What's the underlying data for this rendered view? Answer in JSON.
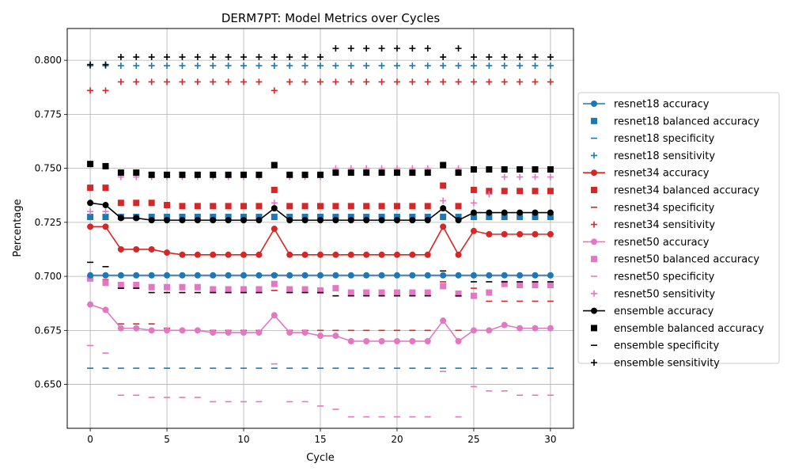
{
  "chart_data": {
    "type": "line",
    "title": "DERM7PT: Model Metrics over Cycles",
    "xlabel": "Cycle",
    "ylabel": "Percentage",
    "xlim": [
      -1.5,
      31.5
    ],
    "ylim": [
      0.6297,
      0.8147
    ],
    "xticks": [
      0,
      5,
      10,
      15,
      20,
      25,
      30
    ],
    "yticks": [
      0.65,
      0.675,
      0.7,
      0.725,
      0.75,
      0.775,
      0.8
    ],
    "ytick_labels": [
      "0.650",
      "0.675",
      "0.700",
      "0.725",
      "0.750",
      "0.775",
      "0.800"
    ],
    "grid": true,
    "legend_position": "center-right outside",
    "colors": {
      "resnet18": "#1f77b4",
      "resnet34": "#d62728",
      "resnet50": "#e377c2",
      "ensemble": "#000000"
    },
    "x": [
      0,
      1,
      2,
      3,
      4,
      5,
      6,
      7,
      8,
      9,
      10,
      11,
      12,
      13,
      14,
      15,
      16,
      17,
      18,
      19,
      20,
      21,
      22,
      23,
      24,
      25,
      26,
      27,
      28,
      29,
      30
    ],
    "series": [
      {
        "name": "resnet18 accuracy",
        "model": "resnet18",
        "marker": "line-circle",
        "values": [
          0.7005,
          0.7005,
          0.7005,
          0.7005,
          0.7005,
          0.7005,
          0.7005,
          0.7005,
          0.7005,
          0.7005,
          0.7005,
          0.7005,
          0.7005,
          0.7005,
          0.7005,
          0.7005,
          0.7005,
          0.7005,
          0.7005,
          0.7005,
          0.7005,
          0.7005,
          0.7005,
          0.7005,
          0.7005,
          0.7005,
          0.7005,
          0.7005,
          0.7005,
          0.7005,
          0.7005
        ]
      },
      {
        "name": "resnet18 balanced accuracy",
        "model": "resnet18",
        "marker": "square",
        "values": [
          0.7275,
          0.7275,
          0.7275,
          0.7275,
          0.7275,
          0.7275,
          0.7275,
          0.7275,
          0.7275,
          0.7275,
          0.7275,
          0.7275,
          0.7275,
          0.7275,
          0.7275,
          0.7275,
          0.7275,
          0.7275,
          0.7275,
          0.7275,
          0.7275,
          0.7275,
          0.7275,
          0.7275,
          0.7275,
          0.7275,
          0.7275,
          0.7275,
          0.7275,
          0.7275,
          0.7275
        ]
      },
      {
        "name": "resnet18 specificity",
        "model": "resnet18",
        "marker": "dash",
        "values": [
          0.6575,
          0.6575,
          0.6575,
          0.6575,
          0.6575,
          0.6575,
          0.6575,
          0.6575,
          0.6575,
          0.6575,
          0.6575,
          0.6575,
          0.6575,
          0.6575,
          0.6575,
          0.6575,
          0.6575,
          0.6575,
          0.6575,
          0.6575,
          0.6575,
          0.6575,
          0.6575,
          0.6575,
          0.6575,
          0.6575,
          0.6575,
          0.6575,
          0.6575,
          0.6575,
          0.6575
        ]
      },
      {
        "name": "resnet18 sensitivity",
        "model": "resnet18",
        "marker": "plus",
        "values": [
          0.7975,
          0.7975,
          0.7975,
          0.7975,
          0.7975,
          0.7975,
          0.7975,
          0.7975,
          0.7975,
          0.7975,
          0.7975,
          0.7975,
          0.7975,
          0.7975,
          0.7975,
          0.7975,
          0.7975,
          0.7975,
          0.7975,
          0.7975,
          0.7975,
          0.7975,
          0.7975,
          0.7975,
          0.7975,
          0.7975,
          0.7975,
          0.7975,
          0.7975,
          0.7975,
          0.7975
        ]
      },
      {
        "name": "resnet34 accuracy",
        "model": "resnet34",
        "marker": "line-circle",
        "values": [
          0.723,
          0.723,
          0.7125,
          0.7125,
          0.7125,
          0.711,
          0.71,
          0.71,
          0.71,
          0.71,
          0.71,
          0.71,
          0.722,
          0.71,
          0.71,
          0.71,
          0.71,
          0.71,
          0.71,
          0.71,
          0.71,
          0.71,
          0.71,
          0.723,
          0.71,
          0.721,
          0.7195,
          0.7195,
          0.7195,
          0.7195,
          0.7195
        ]
      },
      {
        "name": "resnet34 balanced accuracy",
        "model": "resnet34",
        "marker": "square",
        "values": [
          0.741,
          0.741,
          0.734,
          0.734,
          0.734,
          0.733,
          0.7325,
          0.7325,
          0.7325,
          0.7325,
          0.7325,
          0.7325,
          0.74,
          0.7325,
          0.7325,
          0.7325,
          0.7325,
          0.7325,
          0.7325,
          0.7325,
          0.7325,
          0.7325,
          0.7325,
          0.742,
          0.7325,
          0.74,
          0.7395,
          0.7395,
          0.7395,
          0.7395,
          0.7395
        ]
      },
      {
        "name": "resnet34 specificity",
        "model": "resnet34",
        "marker": "dash",
        "values": [
          0.6985,
          0.6985,
          0.678,
          0.678,
          0.678,
          0.676,
          0.675,
          0.675,
          0.675,
          0.675,
          0.675,
          0.675,
          0.6935,
          0.675,
          0.675,
          0.675,
          0.675,
          0.675,
          0.675,
          0.675,
          0.675,
          0.675,
          0.675,
          0.6975,
          0.675,
          0.6945,
          0.6885,
          0.6885,
          0.6885,
          0.6885,
          0.6885
        ]
      },
      {
        "name": "resnet34 sensitivity",
        "model": "resnet34",
        "marker": "plus",
        "values": [
          0.786,
          0.786,
          0.79,
          0.79,
          0.79,
          0.79,
          0.79,
          0.79,
          0.79,
          0.79,
          0.79,
          0.79,
          0.786,
          0.79,
          0.79,
          0.79,
          0.79,
          0.79,
          0.79,
          0.79,
          0.79,
          0.79,
          0.79,
          0.79,
          0.79,
          0.79,
          0.79,
          0.79,
          0.79,
          0.79,
          0.79
        ]
      },
      {
        "name": "resnet50 accuracy",
        "model": "resnet50",
        "marker": "line-circle",
        "values": [
          0.687,
          0.6845,
          0.676,
          0.676,
          0.675,
          0.675,
          0.675,
          0.675,
          0.674,
          0.674,
          0.674,
          0.674,
          0.682,
          0.674,
          0.674,
          0.6725,
          0.6725,
          0.67,
          0.67,
          0.67,
          0.67,
          0.67,
          0.67,
          0.6795,
          0.67,
          0.675,
          0.675,
          0.6775,
          0.676,
          0.676,
          0.676
        ]
      },
      {
        "name": "resnet50 balanced accuracy",
        "model": "resnet50",
        "marker": "square",
        "values": [
          0.699,
          0.697,
          0.696,
          0.696,
          0.695,
          0.695,
          0.695,
          0.695,
          0.694,
          0.694,
          0.694,
          0.694,
          0.6965,
          0.694,
          0.694,
          0.6935,
          0.6945,
          0.6925,
          0.6925,
          0.6925,
          0.6925,
          0.6925,
          0.6925,
          0.6955,
          0.692,
          0.691,
          0.6925,
          0.6965,
          0.696,
          0.696,
          0.696
        ]
      },
      {
        "name": "resnet50 specificity",
        "model": "resnet50",
        "marker": "dash",
        "values": [
          0.668,
          0.6645,
          0.645,
          0.645,
          0.644,
          0.644,
          0.644,
          0.644,
          0.642,
          0.642,
          0.642,
          0.642,
          0.6595,
          0.642,
          0.642,
          0.64,
          0.6385,
          0.635,
          0.635,
          0.635,
          0.635,
          0.635,
          0.635,
          0.656,
          0.635,
          0.649,
          0.647,
          0.647,
          0.645,
          0.645,
          0.645
        ]
      },
      {
        "name": "resnet50 sensitivity",
        "model": "resnet50",
        "marker": "plus",
        "values": [
          0.73,
          0.73,
          0.746,
          0.746,
          0.746,
          0.746,
          0.746,
          0.746,
          0.746,
          0.746,
          0.746,
          0.746,
          0.734,
          0.746,
          0.746,
          0.746,
          0.75,
          0.75,
          0.75,
          0.75,
          0.75,
          0.75,
          0.75,
          0.735,
          0.75,
          0.734,
          0.738,
          0.746,
          0.746,
          0.746,
          0.746
        ]
      },
      {
        "name": "ensemble accuracy",
        "model": "ensemble",
        "marker": "line-circle",
        "values": [
          0.734,
          0.733,
          0.727,
          0.727,
          0.726,
          0.726,
          0.726,
          0.726,
          0.726,
          0.726,
          0.726,
          0.726,
          0.7315,
          0.726,
          0.726,
          0.726,
          0.726,
          0.726,
          0.726,
          0.726,
          0.726,
          0.726,
          0.726,
          0.7315,
          0.726,
          0.7295,
          0.7295,
          0.7295,
          0.7295,
          0.7295,
          0.7295
        ]
      },
      {
        "name": "ensemble balanced accuracy",
        "model": "ensemble",
        "marker": "square",
        "values": [
          0.752,
          0.751,
          0.748,
          0.748,
          0.747,
          0.747,
          0.747,
          0.747,
          0.747,
          0.747,
          0.747,
          0.747,
          0.7515,
          0.747,
          0.747,
          0.747,
          0.748,
          0.748,
          0.748,
          0.748,
          0.748,
          0.748,
          0.748,
          0.7515,
          0.748,
          0.7495,
          0.7495,
          0.7495,
          0.7495,
          0.7495,
          0.7495
        ]
      },
      {
        "name": "ensemble specificity",
        "model": "ensemble",
        "marker": "dash",
        "values": [
          0.7065,
          0.7045,
          0.6945,
          0.6945,
          0.6925,
          0.6925,
          0.6925,
          0.6925,
          0.6925,
          0.6925,
          0.6925,
          0.6925,
          0.701,
          0.6925,
          0.6925,
          0.6925,
          0.691,
          0.691,
          0.691,
          0.691,
          0.691,
          0.691,
          0.691,
          0.7025,
          0.691,
          0.6975,
          0.6975,
          0.6975,
          0.6975,
          0.6975,
          0.6975
        ]
      },
      {
        "name": "ensemble sensitivity",
        "model": "ensemble",
        "marker": "plus",
        "values": [
          0.798,
          0.798,
          0.8015,
          0.8015,
          0.8015,
          0.8015,
          0.8015,
          0.8015,
          0.8015,
          0.8015,
          0.8015,
          0.8015,
          0.8015,
          0.8015,
          0.8015,
          0.8015,
          0.8055,
          0.8055,
          0.8055,
          0.8055,
          0.8055,
          0.8055,
          0.8055,
          0.8015,
          0.8055,
          0.8015,
          0.8015,
          0.8015,
          0.8015,
          0.8015,
          0.8015
        ]
      }
    ]
  }
}
